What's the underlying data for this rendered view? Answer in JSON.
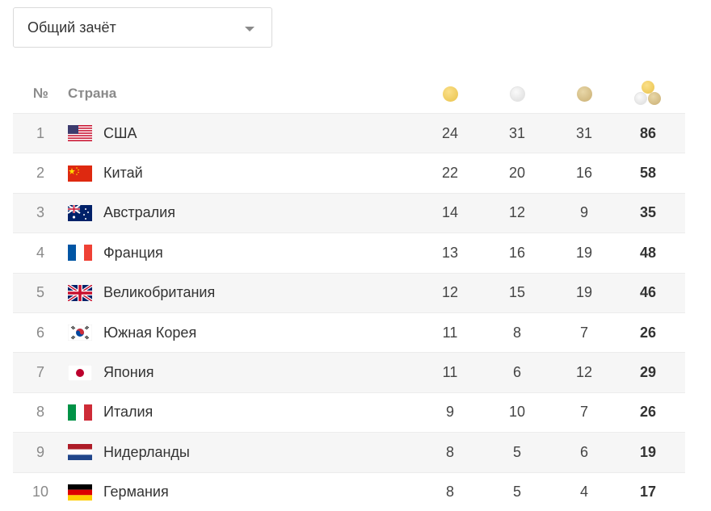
{
  "filter": {
    "selected": "Общий зачёт"
  },
  "table": {
    "headers": {
      "num": "№",
      "country": "Страна"
    },
    "medal_icons": [
      "gold-medal-icon",
      "silver-medal-icon",
      "bronze-medal-icon",
      "total-medals-icon"
    ],
    "rows": [
      {
        "num": "1",
        "flag": "usa",
        "country": "США",
        "gold": "24",
        "silver": "31",
        "bronze": "31",
        "total": "86"
      },
      {
        "num": "2",
        "flag": "china",
        "country": "Китай",
        "gold": "22",
        "silver": "20",
        "bronze": "16",
        "total": "58"
      },
      {
        "num": "3",
        "flag": "australia",
        "country": "Австралия",
        "gold": "14",
        "silver": "12",
        "bronze": "9",
        "total": "35"
      },
      {
        "num": "4",
        "flag": "france",
        "country": "Франция",
        "gold": "13",
        "silver": "16",
        "bronze": "19",
        "total": "48"
      },
      {
        "num": "5",
        "flag": "uk",
        "country": "Великобритания",
        "gold": "12",
        "silver": "15",
        "bronze": "19",
        "total": "46"
      },
      {
        "num": "6",
        "flag": "south-korea",
        "country": "Южная Корея",
        "gold": "11",
        "silver": "8",
        "bronze": "7",
        "total": "26"
      },
      {
        "num": "7",
        "flag": "japan",
        "country": "Япония",
        "gold": "11",
        "silver": "6",
        "bronze": "12",
        "total": "29"
      },
      {
        "num": "8",
        "flag": "italy",
        "country": "Италия",
        "gold": "9",
        "silver": "10",
        "bronze": "7",
        "total": "26"
      },
      {
        "num": "9",
        "flag": "netherlands",
        "country": "Нидерланды",
        "gold": "8",
        "silver": "5",
        "bronze": "6",
        "total": "19"
      },
      {
        "num": "10",
        "flag": "germany",
        "country": "Германия",
        "gold": "8",
        "silver": "5",
        "bronze": "4",
        "total": "17"
      }
    ]
  },
  "colors": {
    "gold": "#e9c24a",
    "silver": "#dcdcdc",
    "bronze": "#c9ae72",
    "stripe": "#f6f6f6",
    "header_text": "#8a8a8a"
  }
}
